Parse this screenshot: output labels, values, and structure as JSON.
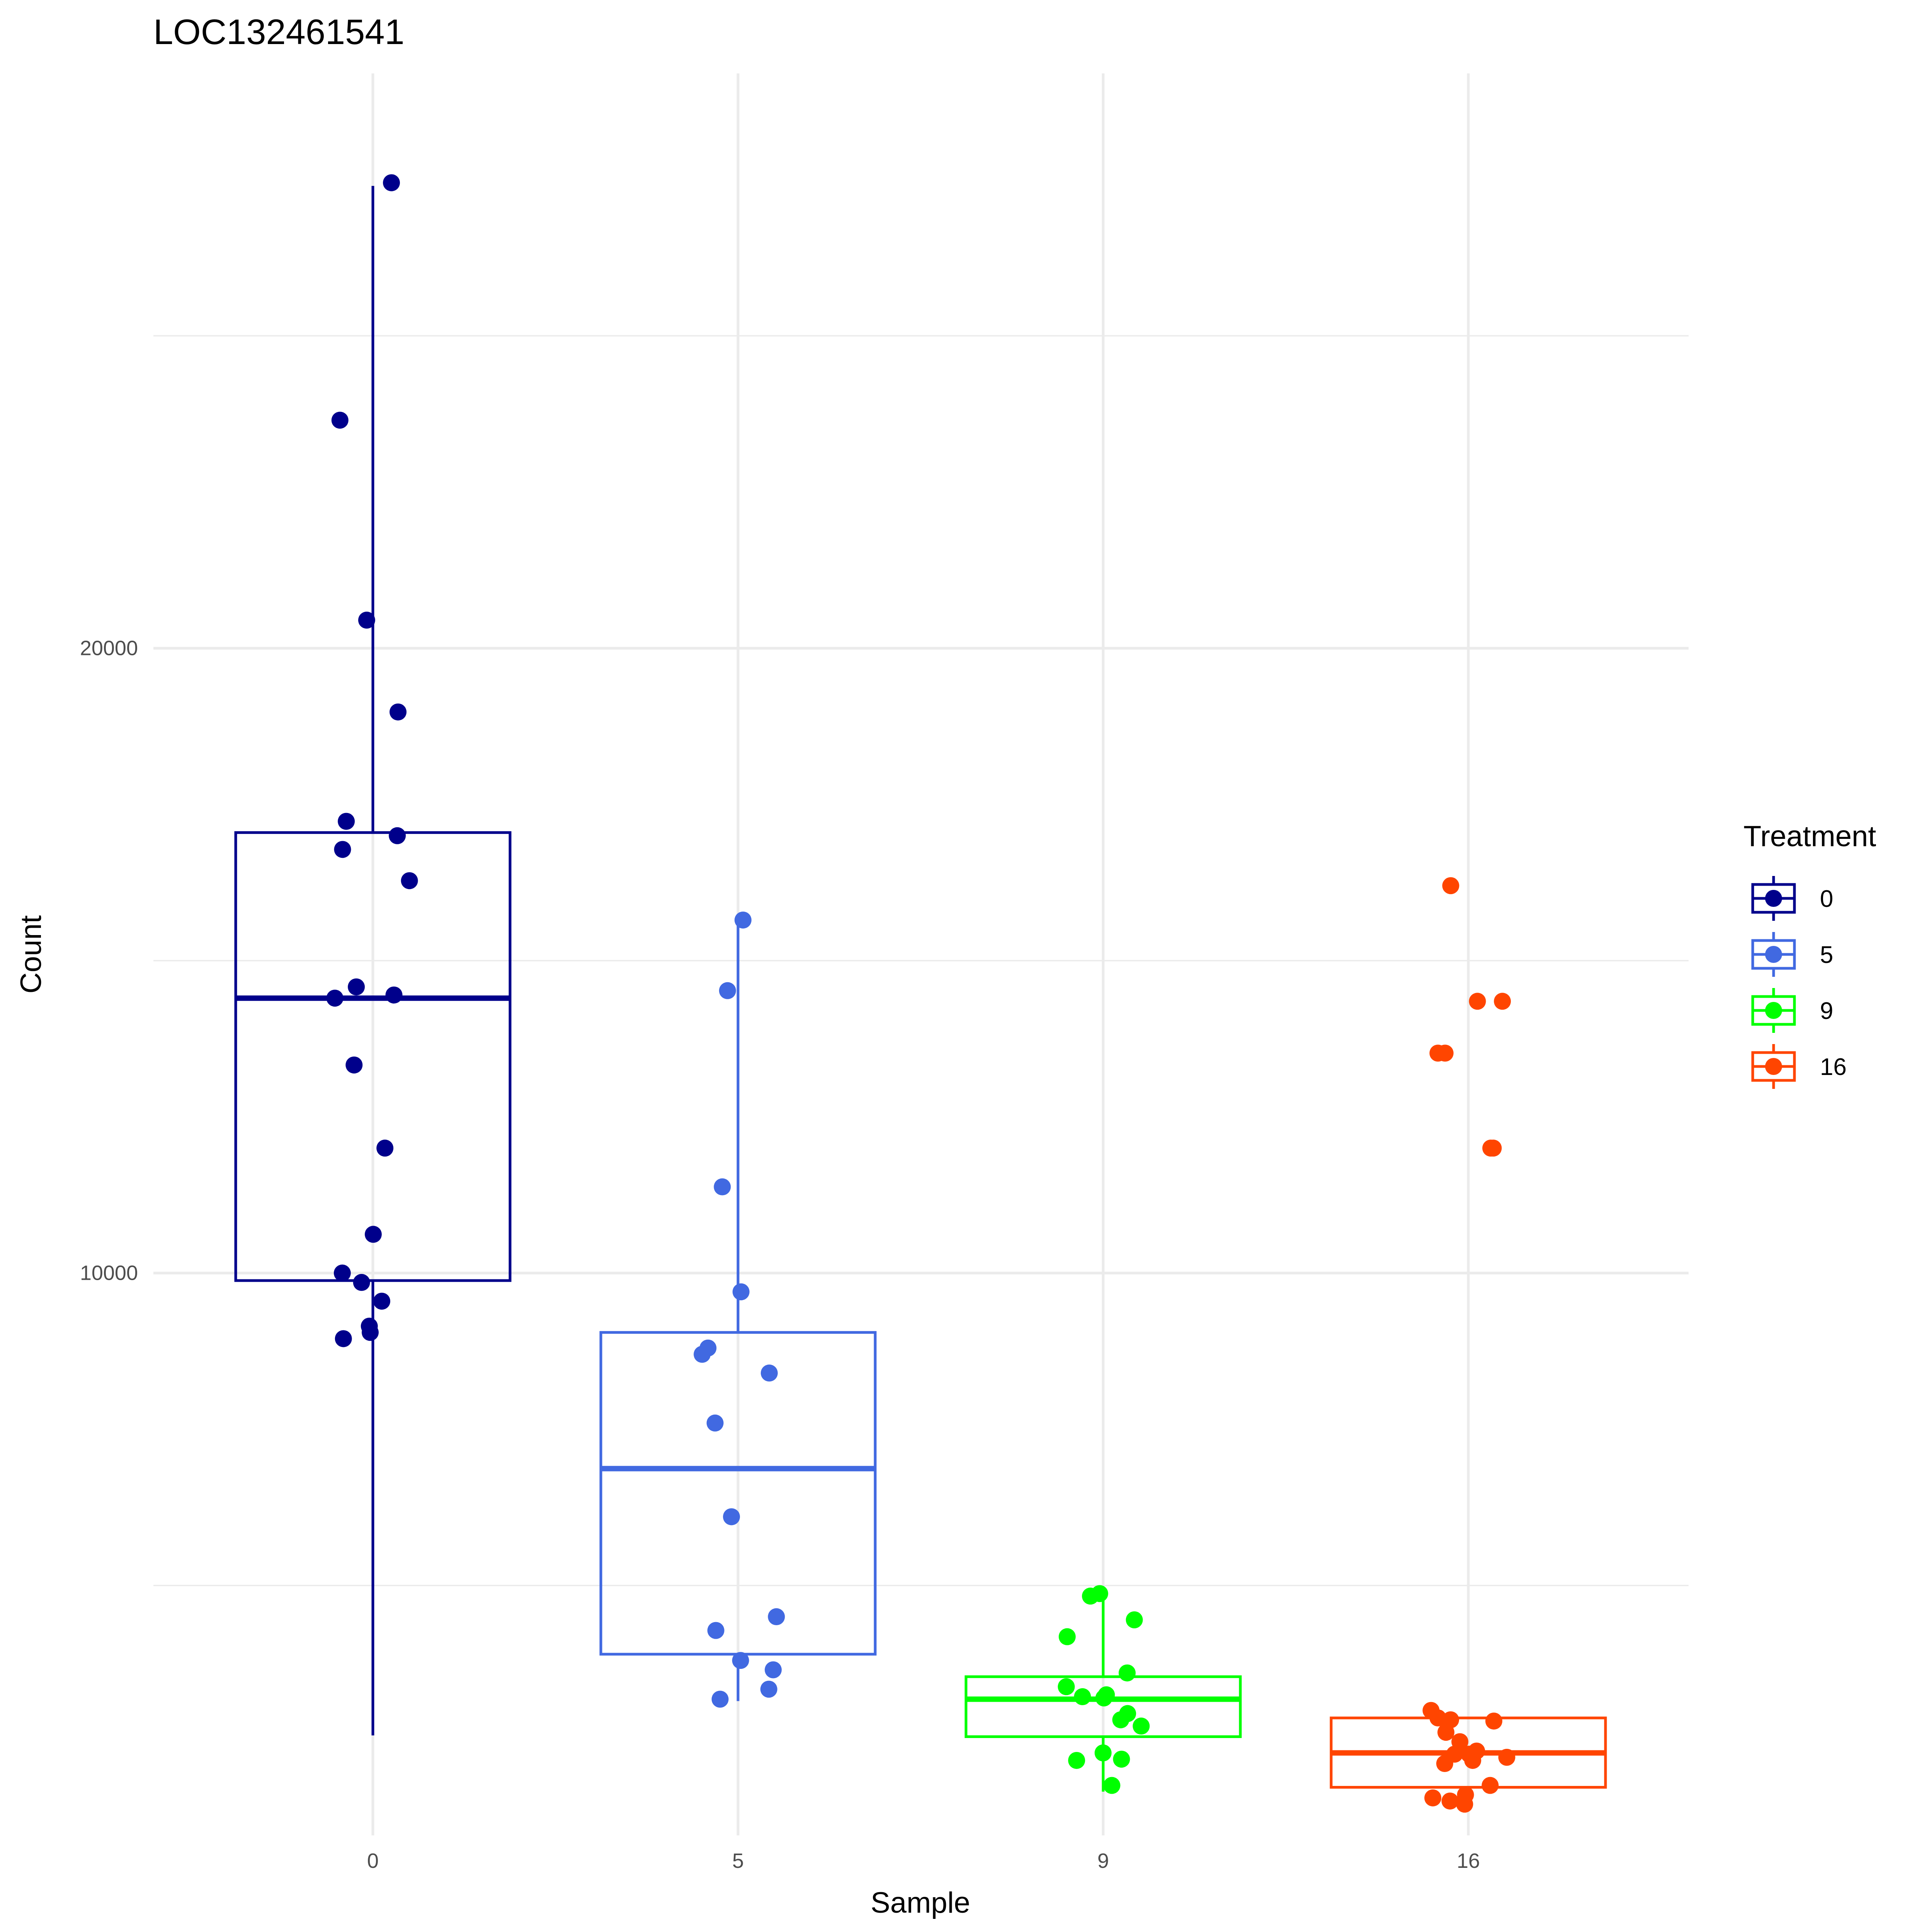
{
  "chart_data": {
    "type": "box",
    "title": "LOC132461541",
    "xlabel": "Sample",
    "ylabel": "Count",
    "categories": [
      "0",
      "5",
      "9",
      "16"
    ],
    "ylim": [
      1000,
      29200
    ],
    "yticks": [
      10000,
      20000
    ],
    "grid": true,
    "legend": {
      "title": "Treatment",
      "position": "right",
      "entries": [
        "0",
        "5",
        "9",
        "16"
      ]
    },
    "colors": [
      "#00008B",
      "#4169E1",
      "#00FF00",
      "#FF4500"
    ],
    "series": [
      {
        "category": "0",
        "box": {
          "q1": 9880,
          "median": 14400,
          "q3": 17050,
          "whisker_low": 2600,
          "whisker_high": 27400
        },
        "points": [
          27450,
          23650,
          20450,
          18980,
          17230,
          17000,
          16780,
          16280,
          14580,
          14450,
          14400,
          13330,
          12000,
          10620,
          10000,
          9850,
          9550,
          9150,
          9050,
          8950
        ]
      },
      {
        "category": "5",
        "box": {
          "q1": 3900,
          "median": 6870,
          "q3": 9050,
          "whisker_low": 3150,
          "whisker_high": 15650
        },
        "points": [
          15650,
          14520,
          11380,
          9700,
          8800,
          8700,
          8400,
          7600,
          6100,
          4500,
          4280,
          3800,
          3650,
          3340,
          3180
        ]
      },
      {
        "category": "9",
        "box": {
          "q1": 2580,
          "median": 3180,
          "q3": 3540,
          "whisker_low": 1700,
          "whisker_high": 4900
        },
        "points": [
          4870,
          4830,
          4450,
          4180,
          3600,
          3380,
          3250,
          3220,
          3200,
          2950,
          2850,
          2750,
          2320,
          2220,
          2200,
          1800
        ]
      },
      {
        "category": "16",
        "box": {
          "q1": 1770,
          "median": 2320,
          "q3": 2880,
          "whisker_low": 1770,
          "whisker_high": 2880
        },
        "points": [
          16200,
          14350,
          14350,
          13520,
          13520,
          12000,
          12000,
          3000,
          2880,
          2850,
          2830,
          2650,
          2500,
          2350,
          2300,
          2300,
          2250,
          2200,
          2150,
          1800,
          1650,
          1600,
          1550,
          1500
        ]
      }
    ]
  }
}
